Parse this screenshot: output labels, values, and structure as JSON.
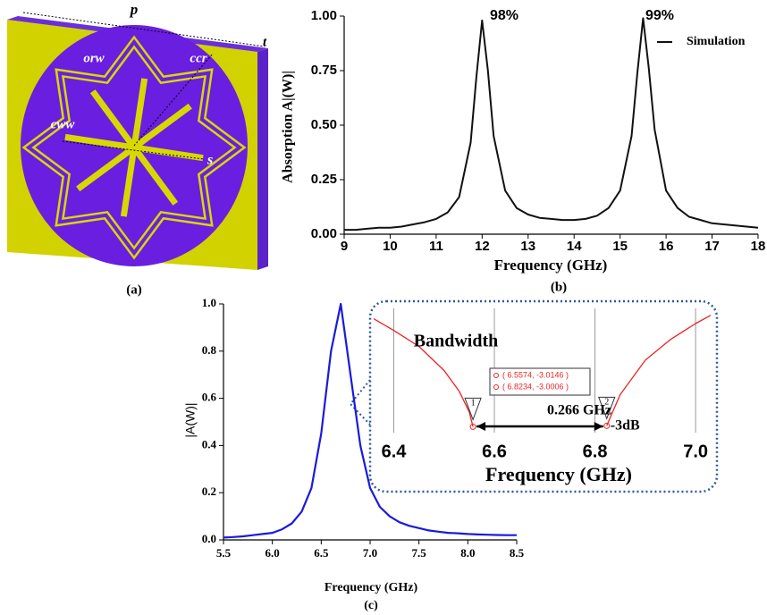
{
  "diagram": {
    "labels": [
      "p",
      "t",
      "orw",
      "ccr",
      "cww",
      "s"
    ],
    "caption": "(a)"
  },
  "chart_data": [
    {
      "type": "line",
      "caption": "(b)",
      "xlabel": "Frequency (GHz)",
      "ylabel": "Absorption A|(W)|",
      "x": [
        9,
        9.25,
        9.5,
        9.75,
        10,
        10.25,
        10.5,
        10.75,
        11,
        11.25,
        11.5,
        11.75,
        11.875,
        12,
        12.125,
        12.25,
        12.5,
        12.75,
        13,
        13.25,
        13.5,
        13.75,
        14,
        14.25,
        14.5,
        14.75,
        15,
        15.25,
        15.375,
        15.5,
        15.625,
        15.75,
        16,
        16.25,
        16.5,
        16.75,
        17,
        17.25,
        17.5,
        17.75,
        18
      ],
      "series": [
        {
          "name": "Simulation",
          "color": "#111111",
          "values": [
            0.02,
            0.02,
            0.025,
            0.03,
            0.03,
            0.035,
            0.045,
            0.055,
            0.07,
            0.1,
            0.17,
            0.42,
            0.72,
            0.98,
            0.75,
            0.45,
            0.2,
            0.12,
            0.09,
            0.075,
            0.07,
            0.065,
            0.065,
            0.07,
            0.085,
            0.12,
            0.2,
            0.45,
            0.74,
            0.99,
            0.76,
            0.48,
            0.2,
            0.12,
            0.08,
            0.065,
            0.05,
            0.045,
            0.04,
            0.035,
            0.03
          ]
        }
      ],
      "xlim": [
        9,
        18
      ],
      "ylim": [
        0,
        1
      ],
      "xticks": [
        9,
        10,
        11,
        12,
        13,
        14,
        15,
        16,
        17,
        18
      ],
      "yticks": [
        {
          "value": 0,
          "label": "0.00"
        },
        {
          "value": 0.25,
          "label": "0.25"
        },
        {
          "value": 0.5,
          "label": "0.50"
        },
        {
          "value": 0.75,
          "label": "0.75"
        },
        {
          "value": 1,
          "label": "1.00"
        }
      ],
      "annotations": [
        "98%",
        "99%"
      ],
      "legend": "upper right"
    },
    {
      "type": "line",
      "caption": "(c)",
      "xlabel": "Frequency (GHz)",
      "ylabel": "|A(W)|",
      "x": [
        5.5,
        5.6,
        5.7,
        5.8,
        5.9,
        6.0,
        6.1,
        6.2,
        6.3,
        6.4,
        6.5,
        6.6,
        6.7,
        6.8,
        6.9,
        7.0,
        7.1,
        7.2,
        7.3,
        7.4,
        7.5,
        7.6,
        7.7,
        7.8,
        7.9,
        8.0,
        8.1,
        8.2,
        8.3,
        8.4,
        8.5
      ],
      "series": [
        {
          "color": "#1a1adc",
          "values": [
            0.01,
            0.012,
            0.015,
            0.02,
            0.025,
            0.03,
            0.045,
            0.07,
            0.12,
            0.22,
            0.45,
            0.8,
            1.0,
            0.7,
            0.4,
            0.22,
            0.14,
            0.1,
            0.075,
            0.06,
            0.05,
            0.04,
            0.035,
            0.03,
            0.028,
            0.025,
            0.023,
            0.022,
            0.021,
            0.02,
            0.02
          ]
        }
      ],
      "xlim": [
        5.5,
        8.5
      ],
      "ylim": [
        0,
        1
      ],
      "xticks": [
        5.5,
        {
          "value": 6,
          "label": "6.0"
        },
        6.5,
        {
          "value": 7,
          "label": "7.0"
        },
        7.5,
        {
          "value": 8,
          "label": "8.0"
        },
        8.5
      ],
      "yticks": [
        {
          "value": 0,
          "label": "0.0"
        },
        0.2,
        0.4,
        0.6,
        0.8,
        {
          "value": 1,
          "label": "1.0"
        }
      ]
    },
    {
      "type": "line",
      "title": "Bandwidth",
      "xlabel": "Frequency (GHz)",
      "x": [
        6.36,
        6.4,
        6.45,
        6.5,
        6.53,
        6.55,
        6.5574,
        6.7,
        6.8234,
        6.85,
        6.9,
        6.95,
        7.0,
        7.03
      ],
      "series": [
        {
          "color": "#ee2222",
          "values": [
            -1.45,
            -1.62,
            -1.85,
            -2.2,
            -2.5,
            -2.8,
            -3.0146,
            null,
            -3.0006,
            -2.55,
            -2.05,
            -1.75,
            -1.52,
            -1.4
          ]
        }
      ],
      "xlim": [
        6.36,
        7.03
      ],
      "ylim": [
        -3.1,
        -1.3
      ],
      "xticks": [
        6.4,
        6.6,
        6.8,
        {
          "value": 7,
          "label": "7.0"
        }
      ],
      "grid": true,
      "markers": [
        {
          "label": "1",
          "x": 6.5574,
          "y": -3.0146,
          "readout": "( 6.5574, -3.0146 )"
        },
        {
          "label": "2",
          "x": 6.8234,
          "y": -3.0006,
          "readout": "( 6.8234, -3.0006 )"
        }
      ],
      "annotations": [
        "0.266 GHz",
        "-3dB"
      ]
    }
  ]
}
